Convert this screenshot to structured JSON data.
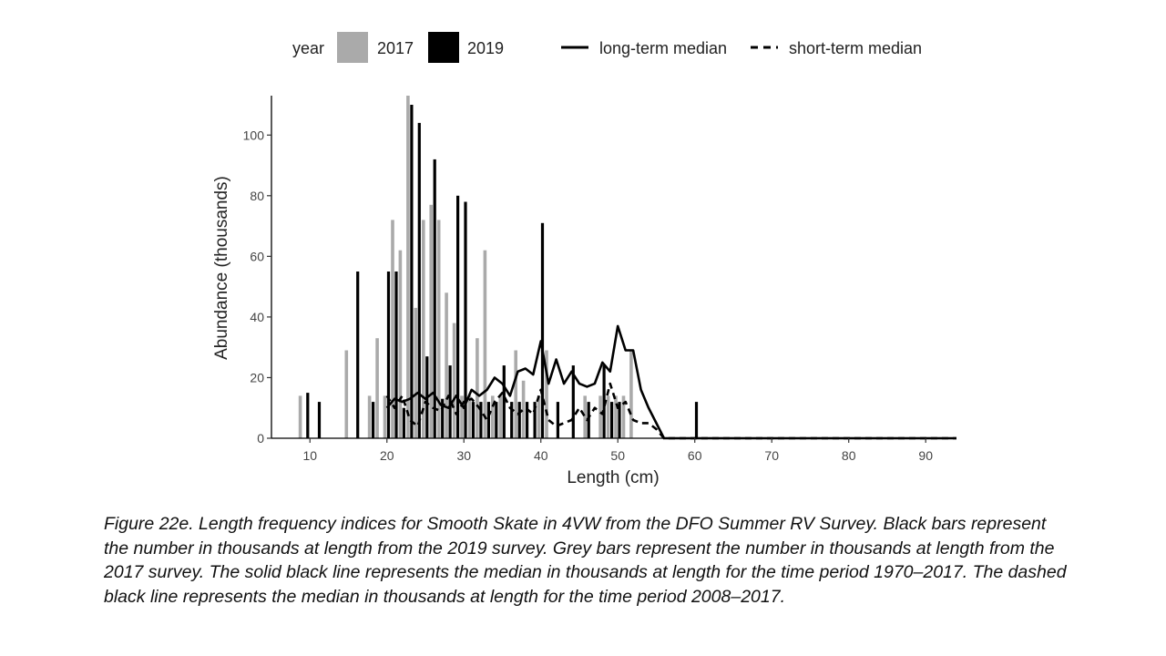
{
  "chart_data": {
    "type": "bar",
    "xlabel": "Length (cm)",
    "ylabel": "Abundance (thousands)",
    "xlim": [
      5,
      94
    ],
    "ylim": [
      0,
      113
    ],
    "x_ticks": [
      10,
      20,
      30,
      40,
      50,
      60,
      70,
      80,
      90
    ],
    "y_ticks": [
      0,
      20,
      40,
      60,
      80,
      100
    ],
    "grid": false,
    "legend_position": "top",
    "legend": {
      "fill_title": "year",
      "fill_labels": [
        "2017",
        "2019"
      ],
      "line_labels": [
        "long-term median",
        "short-term median"
      ]
    },
    "colors": {
      "bars_2017": "#aaaaaa",
      "bars_2019": "#000000",
      "lines": "#000000"
    },
    "bar_series": [
      {
        "name": "2017",
        "points": [
          [
            9,
            14
          ],
          [
            15,
            29
          ],
          [
            18,
            14
          ],
          [
            19,
            33
          ],
          [
            20,
            14
          ],
          [
            21,
            72
          ],
          [
            22,
            62
          ],
          [
            23,
            113
          ],
          [
            24,
            43
          ],
          [
            25,
            72
          ],
          [
            26,
            77
          ],
          [
            27,
            72
          ],
          [
            28,
            48
          ],
          [
            29,
            38
          ],
          [
            30,
            14
          ],
          [
            31,
            14
          ],
          [
            32,
            33
          ],
          [
            33,
            62
          ],
          [
            34,
            14
          ],
          [
            35,
            14
          ],
          [
            37,
            29
          ],
          [
            38,
            19
          ],
          [
            40,
            14
          ],
          [
            41,
            29
          ],
          [
            46,
            14
          ],
          [
            48,
            14
          ],
          [
            49,
            14
          ],
          [
            50,
            14
          ],
          [
            51,
            14
          ],
          [
            52,
            29
          ]
        ]
      },
      {
        "name": "2019",
        "points": [
          [
            9.5,
            15
          ],
          [
            11,
            12
          ],
          [
            16,
            55
          ],
          [
            18,
            12
          ],
          [
            20,
            55
          ],
          [
            21,
            55
          ],
          [
            22,
            10
          ],
          [
            23,
            110
          ],
          [
            24,
            104
          ],
          [
            25,
            27
          ],
          [
            26,
            92
          ],
          [
            27,
            13
          ],
          [
            28,
            24
          ],
          [
            29,
            80
          ],
          [
            30,
            78
          ],
          [
            31,
            12
          ],
          [
            32,
            12
          ],
          [
            33,
            12
          ],
          [
            34,
            12
          ],
          [
            35,
            24
          ],
          [
            36,
            12
          ],
          [
            37,
            12
          ],
          [
            38,
            12
          ],
          [
            39,
            12
          ],
          [
            40,
            71
          ],
          [
            42,
            12
          ],
          [
            44,
            24
          ],
          [
            46,
            12
          ],
          [
            48,
            24
          ],
          [
            49,
            12
          ],
          [
            50,
            12
          ],
          [
            60,
            12
          ]
        ]
      }
    ],
    "line_series": [
      {
        "name": "long-term median",
        "style": "solid",
        "points": [
          [
            20,
            10
          ],
          [
            21,
            13
          ],
          [
            22,
            12
          ],
          [
            23,
            13
          ],
          [
            24,
            15
          ],
          [
            25,
            13
          ],
          [
            26,
            15
          ],
          [
            27,
            11
          ],
          [
            28,
            10
          ],
          [
            29,
            14
          ],
          [
            30,
            10
          ],
          [
            31,
            16
          ],
          [
            32,
            14
          ],
          [
            33,
            16
          ],
          [
            34,
            20
          ],
          [
            35,
            18
          ],
          [
            36,
            14
          ],
          [
            37,
            22
          ],
          [
            38,
            23
          ],
          [
            39,
            21
          ],
          [
            40,
            32
          ],
          [
            41,
            18
          ],
          [
            42,
            26
          ],
          [
            43,
            18
          ],
          [
            44,
            22
          ],
          [
            45,
            18
          ],
          [
            46,
            17
          ],
          [
            47,
            18
          ],
          [
            48,
            25
          ],
          [
            49,
            22
          ],
          [
            50,
            37
          ],
          [
            51,
            29
          ],
          [
            52,
            29
          ],
          [
            53,
            16
          ],
          [
            54,
            10
          ],
          [
            55,
            5
          ],
          [
            56,
            0
          ],
          [
            94,
            0
          ]
        ]
      },
      {
        "name": "short-term median",
        "style": "dashed",
        "points": [
          [
            20,
            14
          ],
          [
            21,
            10
          ],
          [
            22,
            14
          ],
          [
            23,
            6
          ],
          [
            24,
            4
          ],
          [
            25,
            12
          ],
          [
            26,
            10
          ],
          [
            27,
            9
          ],
          [
            28,
            14
          ],
          [
            29,
            8
          ],
          [
            30,
            12
          ],
          [
            31,
            13
          ],
          [
            32,
            10
          ],
          [
            33,
            6
          ],
          [
            34,
            12
          ],
          [
            35,
            15
          ],
          [
            36,
            10
          ],
          [
            37,
            8
          ],
          [
            38,
            10
          ],
          [
            39,
            8
          ],
          [
            40,
            16
          ],
          [
            41,
            6
          ],
          [
            42,
            4
          ],
          [
            43,
            5
          ],
          [
            44,
            6
          ],
          [
            45,
            10
          ],
          [
            46,
            6
          ],
          [
            47,
            10
          ],
          [
            48,
            8
          ],
          [
            49,
            18
          ],
          [
            50,
            10
          ],
          [
            51,
            12
          ],
          [
            52,
            6
          ],
          [
            53,
            5
          ],
          [
            54,
            5
          ],
          [
            55,
            3
          ],
          [
            56,
            0
          ],
          [
            94,
            0
          ]
        ]
      }
    ]
  },
  "caption": "Figure 22e. Length frequency indices for Smooth Skate in 4VW from the DFO Summer RV Survey. Black bars represent the number in thousands at length from the 2019 survey. Grey bars represent the number in thousands at length from the 2017 survey. The solid black line represents the median in thousands at length for the time period 1970–2017. The dashed black line represents the median in thousands at length for the time period 2008–2017."
}
